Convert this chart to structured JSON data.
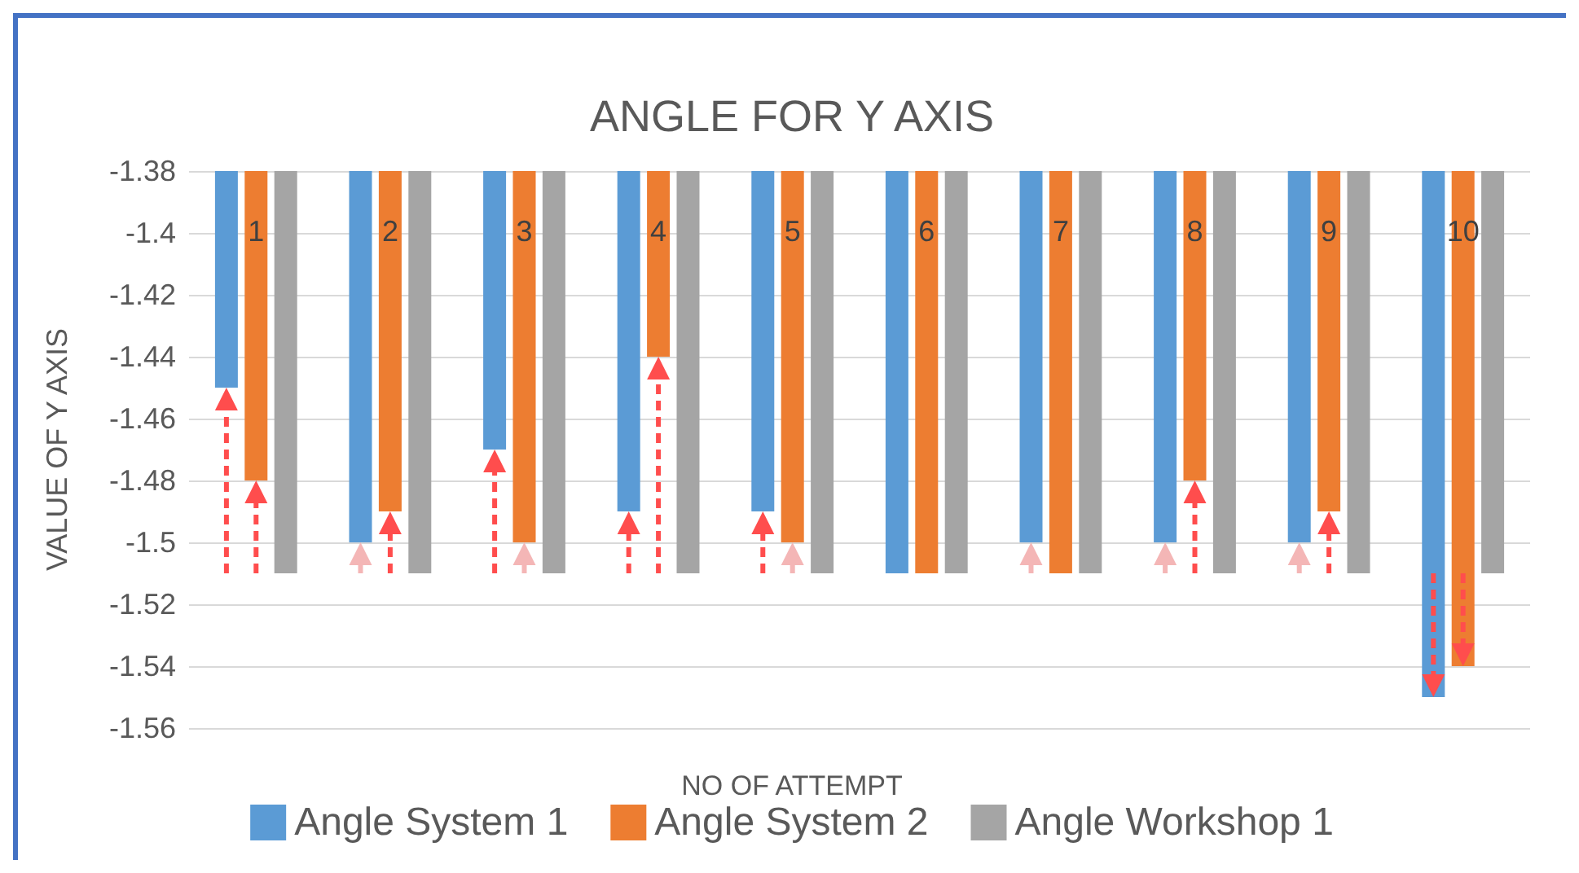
{
  "chart_data": {
    "type": "bar",
    "title": "ANGLE FOR Y AXIS",
    "xlabel": "NO OF ATTEMPT",
    "ylabel": "VALUE OF Y AXIS",
    "categories": [
      "1",
      "2",
      "3",
      "4",
      "5",
      "6",
      "7",
      "8",
      "9",
      "10"
    ],
    "series": [
      {
        "name": "Angle System 1",
        "color": "#5b9bd5",
        "values": [
          -1.45,
          -1.5,
          -1.47,
          -1.49,
          -1.49,
          -1.51,
          -1.5,
          -1.5,
          -1.5,
          -1.55
        ]
      },
      {
        "name": "Angle System 2",
        "color": "#ed7d31",
        "values": [
          -1.48,
          -1.49,
          -1.5,
          -1.44,
          -1.5,
          -1.51,
          -1.51,
          -1.48,
          -1.49,
          -1.54
        ]
      },
      {
        "name": "Angle Workshop 1",
        "color": "#a5a5a5",
        "values": [
          -1.51,
          -1.51,
          -1.51,
          -1.51,
          -1.51,
          -1.51,
          -1.51,
          -1.51,
          -1.51,
          -1.51
        ]
      }
    ],
    "ylim": [
      -1.56,
      -1.38
    ],
    "yticks": [
      -1.56,
      -1.54,
      -1.52,
      -1.5,
      -1.48,
      -1.46,
      -1.44,
      -1.42,
      -1.4,
      -1.38
    ],
    "grid": "y",
    "legend": "bottom"
  }
}
